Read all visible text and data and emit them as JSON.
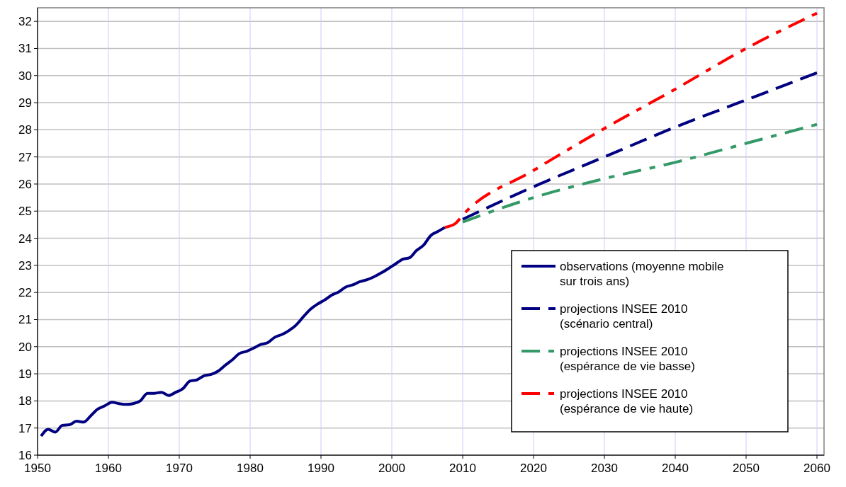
{
  "chart_data": {
    "type": "line",
    "xlim": [
      1950,
      2061
    ],
    "ylim": [
      16,
      32.5
    ],
    "xticks": [
      1950,
      1960,
      1970,
      1980,
      1990,
      2000,
      2010,
      2020,
      2030,
      2040,
      2050,
      2060
    ],
    "yticks": [
      16,
      17,
      18,
      19,
      20,
      21,
      22,
      23,
      24,
      25,
      26,
      27,
      28,
      29,
      30,
      31,
      32
    ],
    "grid": true,
    "legend": "bottom right",
    "marker": "none",
    "series": [
      {
        "name": "observations (moyenne mobile sur trois ans)",
        "color": "#000080",
        "line_style": "solid",
        "x": [
          1950.5,
          1951.5,
          1952.5,
          1953.5,
          1954.5,
          1955.5,
          1956.5,
          1957.5,
          1958.5,
          1959.5,
          1960.5,
          1961.5,
          1962.5,
          1963.5,
          1964.5,
          1965.5,
          1966.5,
          1967.5,
          1968.5,
          1969.5,
          1970.5,
          1971.5,
          1972.5,
          1973.5,
          1974.5,
          1975.5,
          1976.5,
          1977.5,
          1978.5,
          1979.5,
          1980.5,
          1981.5,
          1982.5,
          1983.5,
          1984.5,
          1985.5,
          1986.5,
          1987.5,
          1988.5,
          1989.5,
          1990.5,
          1991.5,
          1992.5,
          1993.5,
          1994.5,
          1995.5,
          1996.5,
          1997.5,
          1998.5,
          1999.5,
          2000.5,
          2001.5,
          2002.5,
          2003.5,
          2004.5,
          2005.5,
          2006.5,
          2007.5
        ],
        "values": [
          16.7,
          16.95,
          16.85,
          17.1,
          17.12,
          17.25,
          17.22,
          17.45,
          17.7,
          17.82,
          17.95,
          17.9,
          17.87,
          17.9,
          18.0,
          18.28,
          18.28,
          18.32,
          18.2,
          18.32,
          18.45,
          18.73,
          18.78,
          18.93,
          18.98,
          19.1,
          19.32,
          19.52,
          19.75,
          19.83,
          19.95,
          20.08,
          20.15,
          20.35,
          20.45,
          20.6,
          20.8,
          21.1,
          21.38,
          21.57,
          21.72,
          21.9,
          22.02,
          22.2,
          22.28,
          22.4,
          22.47,
          22.58,
          22.72,
          22.88,
          23.05,
          23.22,
          23.28,
          23.55,
          23.75,
          24.1,
          24.25,
          24.4
        ]
      },
      {
        "name": "projections INSEE 2010 (scénario central)",
        "color": "#000080",
        "line_style": "dashed",
        "x": [
          2010,
          2020,
          2030,
          2040,
          2050,
          2060
        ],
        "values": [
          24.7,
          25.9,
          27.0,
          28.1,
          29.1,
          30.1
        ]
      },
      {
        "name": "projections INSEE 2010 (espérance de vie basse)",
        "color": "#339966",
        "line_style": "dashdot",
        "x": [
          2010,
          2020,
          2030,
          2040,
          2050,
          2060
        ],
        "values": [
          24.6,
          25.5,
          26.2,
          26.8,
          27.5,
          28.2
        ]
      },
      {
        "name": "projections INSEE 2010 (espérance de vie haute)",
        "color": "#ff0000",
        "line_style": "dashdot",
        "x": [
          2007.5,
          2009,
          2010,
          2020,
          2030,
          2040,
          2050,
          2060
        ],
        "values": [
          24.4,
          24.55,
          24.85,
          26.5,
          28.05,
          29.5,
          31.0,
          32.3
        ]
      }
    ]
  }
}
